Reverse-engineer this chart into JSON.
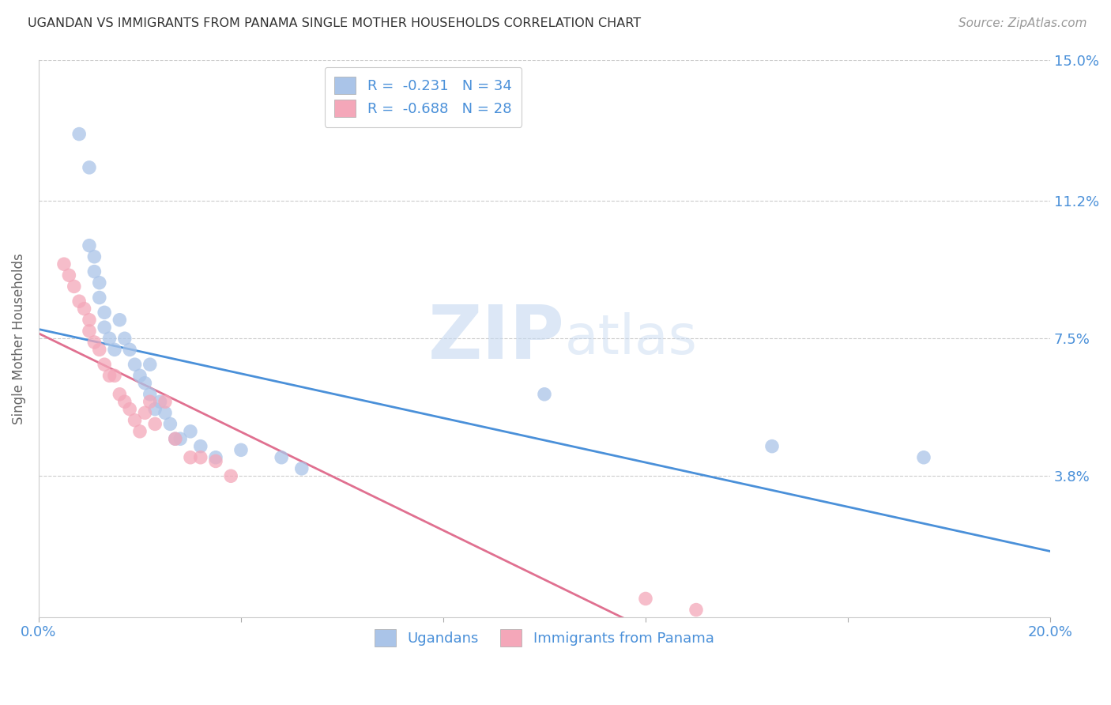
{
  "title": "UGANDAN VS IMMIGRANTS FROM PANAMA SINGLE MOTHER HOUSEHOLDS CORRELATION CHART",
  "source": "Source: ZipAtlas.com",
  "ylabel": "Single Mother Households",
  "xlim": [
    0.0,
    0.2
  ],
  "ylim": [
    0.0,
    0.15
  ],
  "yticks": [
    0.038,
    0.075,
    0.112,
    0.15
  ],
  "ytick_labels": [
    "3.8%",
    "7.5%",
    "11.2%",
    "15.0%"
  ],
  "xticks": [
    0.0,
    0.04,
    0.08,
    0.12,
    0.16,
    0.2
  ],
  "xtick_labels": [
    "0.0%",
    "",
    "",
    "",
    "",
    "20.0%"
  ],
  "watermark_zip": "ZIP",
  "watermark_atlas": "atlas",
  "ugandan_x": [
    0.008,
    0.01,
    0.01,
    0.011,
    0.011,
    0.012,
    0.012,
    0.013,
    0.013,
    0.014,
    0.015,
    0.016,
    0.017,
    0.018,
    0.019,
    0.02,
    0.021,
    0.022,
    0.022,
    0.023,
    0.024,
    0.025,
    0.026,
    0.027,
    0.028,
    0.03,
    0.032,
    0.035,
    0.04,
    0.048,
    0.052,
    0.1,
    0.145,
    0.175
  ],
  "ugandan_y": [
    0.13,
    0.121,
    0.1,
    0.097,
    0.093,
    0.09,
    0.086,
    0.082,
    0.078,
    0.075,
    0.072,
    0.08,
    0.075,
    0.072,
    0.068,
    0.065,
    0.063,
    0.068,
    0.06,
    0.056,
    0.058,
    0.055,
    0.052,
    0.048,
    0.048,
    0.05,
    0.046,
    0.043,
    0.045,
    0.043,
    0.04,
    0.06,
    0.046,
    0.043
  ],
  "panama_x": [
    0.005,
    0.006,
    0.007,
    0.008,
    0.009,
    0.01,
    0.01,
    0.011,
    0.012,
    0.013,
    0.014,
    0.015,
    0.016,
    0.017,
    0.018,
    0.019,
    0.02,
    0.021,
    0.022,
    0.023,
    0.025,
    0.027,
    0.03,
    0.032,
    0.035,
    0.038,
    0.12,
    0.13
  ],
  "panama_y": [
    0.095,
    0.092,
    0.089,
    0.085,
    0.083,
    0.08,
    0.077,
    0.074,
    0.072,
    0.068,
    0.065,
    0.065,
    0.06,
    0.058,
    0.056,
    0.053,
    0.05,
    0.055,
    0.058,
    0.052,
    0.058,
    0.048,
    0.043,
    0.043,
    0.042,
    0.038,
    0.005,
    0.002
  ],
  "blue_line_color": "#4a90d9",
  "pink_line_color": "#e07090",
  "dot_blue": "#aac4e8",
  "dot_pink": "#f4a7b9",
  "background_color": "#ffffff",
  "grid_color": "#cccccc",
  "title_color": "#333333",
  "tick_label_color": "#4a90d9",
  "R_ugandan": -0.231,
  "N_ugandan": 34,
  "R_panama": -0.688,
  "N_panama": 28,
  "label_ugandan": "Ugandans",
  "label_panama": "Immigrants from Panama"
}
